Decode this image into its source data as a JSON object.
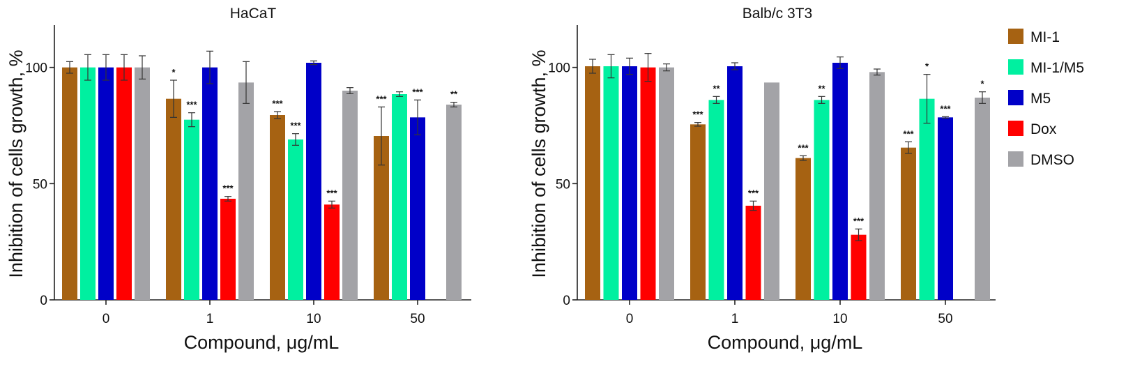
{
  "chart_data": [
    {
      "type": "bar",
      "title": "HaCaT",
      "xlabel": "Compound, μg/mL",
      "ylabel": "Inhibition of  cells  growth,  %",
      "categories": [
        "0",
        "1",
        "10",
        "50"
      ],
      "ylim": [
        0,
        120
      ],
      "yticks": [
        0,
        50,
        100
      ],
      "series": [
        {
          "name": "MI-1",
          "color": "#A66212",
          "values": [
            100,
            86.5,
            79.5,
            70.5
          ],
          "errors": [
            2.5,
            8,
            1.5,
            12.5
          ],
          "sig": [
            "",
            "*",
            "***",
            "***"
          ]
        },
        {
          "name": "MI-1/M5",
          "color": "#00F0A0",
          "values": [
            100,
            77.5,
            69,
            88.5
          ],
          "errors": [
            5.5,
            3,
            2.5,
            1
          ],
          "sig": [
            "",
            "***",
            "***",
            ""
          ]
        },
        {
          "name": "M5",
          "color": "#0000C8",
          "values": [
            100,
            100,
            102,
            78.5
          ],
          "errors": [
            5.5,
            7,
            0.8,
            7.5
          ],
          "sig": [
            "",
            "",
            "",
            "***"
          ]
        },
        {
          "name": "Dox",
          "color": "#FF0000",
          "values": [
            100,
            43.5,
            41,
            null
          ],
          "errors": [
            5.5,
            1,
            1.5,
            0
          ],
          "sig": [
            "",
            "***",
            "***",
            ""
          ]
        },
        {
          "name": "DMSO",
          "color": "#A3A3A7",
          "values": [
            100,
            93.5,
            90,
            84
          ],
          "errors": [
            5,
            9,
            1.3,
            1
          ],
          "sig": [
            "",
            "",
            "",
            "**"
          ]
        }
      ]
    },
    {
      "type": "bar",
      "title": "Balb/c 3T3",
      "xlabel": "Compound, μg/mL",
      "ylabel": "Inhibition of  cells  growth,  %",
      "categories": [
        "0",
        "1",
        "10",
        "50"
      ],
      "ylim": [
        0,
        120
      ],
      "yticks": [
        0,
        50,
        100
      ],
      "series": [
        {
          "name": "MI-1",
          "color": "#A66212",
          "values": [
            100.5,
            75.5,
            61,
            65.5
          ],
          "errors": [
            3,
            0.8,
            1,
            2.5
          ],
          "sig": [
            "",
            "***",
            "***",
            "***"
          ]
        },
        {
          "name": "MI-1/M5",
          "color": "#00F0A0",
          "values": [
            100.5,
            86,
            86,
            86.5
          ],
          "errors": [
            5,
            1.5,
            1.5,
            10.5
          ],
          "sig": [
            "",
            "**",
            "**",
            "*"
          ]
        },
        {
          "name": "M5",
          "color": "#0000C8",
          "values": [
            100.5,
            100.5,
            102,
            78.5
          ],
          "errors": [
            3.5,
            1.5,
            2.5,
            0.3
          ],
          "sig": [
            "",
            "",
            "",
            "***"
          ]
        },
        {
          "name": "Dox",
          "color": "#FF0000",
          "values": [
            100,
            40.5,
            28,
            null
          ],
          "errors": [
            6,
            2,
            2.5,
            0
          ],
          "sig": [
            "",
            "***",
            "***",
            ""
          ]
        },
        {
          "name": "DMSO",
          "color": "#A3A3A7",
          "values": [
            100,
            93.5,
            98,
            87
          ],
          "errors": [
            1.5,
            0,
            1.3,
            2.5
          ],
          "sig": [
            "",
            "",
            "",
            "*"
          ]
        }
      ]
    }
  ],
  "legend": {
    "placement": "right",
    "items": [
      {
        "label": "MI-1",
        "color": "#A66212"
      },
      {
        "label": "MI-1/M5",
        "color": "#00F0A0"
      },
      {
        "label": "M5",
        "color": "#0000C8"
      },
      {
        "label": "Dox",
        "color": "#FF0000"
      },
      {
        "label": "DMSO",
        "color": "#A3A3A7"
      }
    ]
  }
}
